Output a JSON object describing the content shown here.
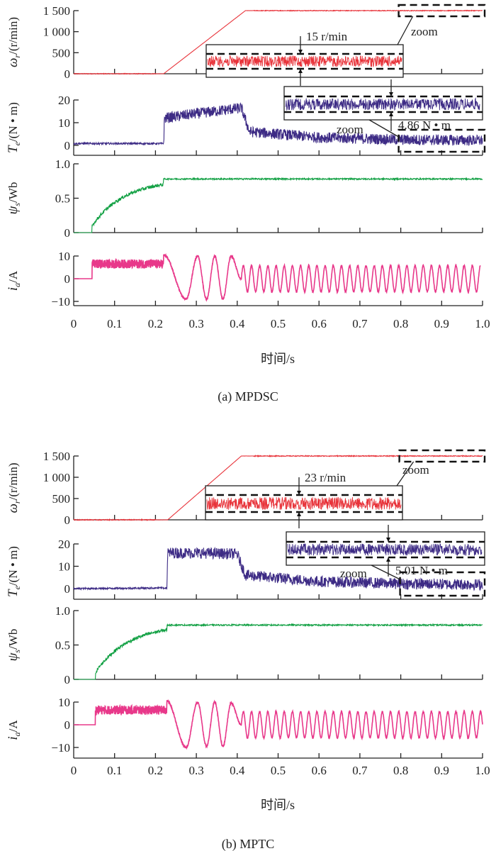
{
  "chart_data": [
    {
      "type": "line",
      "caption": "(a) MPDSC",
      "xlabel": "时间/s",
      "x_ticks": [
        "0",
        "0.1",
        "0.2",
        "0.3",
        "0.4",
        "0.5",
        "0.6",
        "0.7",
        "0.8",
        "0.9",
        "1.0"
      ],
      "xlim": [
        0,
        1.0
      ],
      "panels": [
        {
          "id": "speed",
          "ylabel_symbol": "ω",
          "ylabel_sub": "r",
          "ylabel_unit": "/(r/min)",
          "ylim": [
            0,
            1500
          ],
          "y_ticks": [
            "0",
            "500",
            "1 000",
            "1 500"
          ],
          "y_tick_values": [
            0,
            500,
            1000,
            1500
          ],
          "color": "#e8333a",
          "series": {
            "name": "speed",
            "x": [
              0,
              0.22,
              0.42,
              1.0
            ],
            "y": [
              0,
              0,
              1500,
              1500
            ],
            "noise": 8
          },
          "zoom_label": "zoom",
          "zoom_ripple_label": "15 r/min",
          "zoom_window": [
            0.8,
            1.0
          ]
        },
        {
          "id": "torque",
          "ylabel_symbol": "T",
          "ylabel_sub": "e",
          "ylabel_unit": "/(N • m)",
          "ylim": [
            -5,
            20
          ],
          "y_ticks": [
            "0",
            "10",
            "20"
          ],
          "y_tick_values": [
            0,
            10,
            20
          ],
          "color": "#3d2b85",
          "series": {
            "name": "torque",
            "x": [
              0,
              0.22,
              0.222,
              0.3,
              0.41,
              0.43,
              0.6,
              0.8,
              1.0
            ],
            "y": [
              0.8,
              0.8,
              12,
              14,
              16.5,
              6,
              3.5,
              2.5,
              2.2
            ],
            "noise": 2.4
          },
          "zoom_label": "zoom",
          "zoom_ripple_label": "4.86 N • m",
          "zoom_window": [
            0.8,
            1.0
          ]
        },
        {
          "id": "flux",
          "ylabel_symbol": "ψ",
          "ylabel_sub": "s",
          "ylabel_unit": "/Wb",
          "ylim": [
            0,
            1.0
          ],
          "y_ticks": [
            "0",
            "0.5",
            "1.0"
          ],
          "y_tick_values": [
            0,
            0.5,
            1.0
          ],
          "color": "#11a043",
          "series": {
            "name": "flux",
            "start": 0.045,
            "rise_end": 0.22,
            "rise_from": 0.1,
            "rise_to": 0.7,
            "steady": 0.78,
            "noise": 0.02
          }
        },
        {
          "id": "current",
          "ylabel_symbol": "i",
          "ylabel_sub": "a",
          "ylabel_unit": "/A",
          "ylim": [
            -15,
            12
          ],
          "y_ticks": [
            "-10",
            "0",
            "10"
          ],
          "y_tick_values": [
            -10,
            0,
            10
          ],
          "color": "#e8388a",
          "series": {
            "name": "current",
            "dc_start": 0.045,
            "dc_level": 6.5,
            "dc_band": 2,
            "osc_start": 0.22,
            "peaks": [
              -9,
              10,
              -9,
              10,
              -9,
              10
            ],
            "steady_amp": 5.8,
            "steady_freq": 50,
            "end": 0.995
          }
        }
      ]
    },
    {
      "type": "line",
      "caption": "(b) MPTC",
      "xlabel": "时间/s",
      "x_ticks": [
        "0",
        "0.1",
        "0.2",
        "0.3",
        "0.4",
        "0.5",
        "0.6",
        "0.7",
        "0.8",
        "0.9",
        "1.0"
      ],
      "xlim": [
        0,
        1.0
      ],
      "panels": [
        {
          "id": "speed",
          "ylabel_symbol": "ω",
          "ylabel_sub": "r",
          "ylabel_unit": "/(r/min)",
          "ylim": [
            0,
            1500
          ],
          "y_ticks": [
            "0",
            "500",
            "1 000",
            "1 500"
          ],
          "y_tick_values": [
            0,
            500,
            1000,
            1500
          ],
          "color": "#e8333a",
          "series": {
            "name": "speed",
            "x": [
              0,
              0.23,
              0.41,
              1.0
            ],
            "y": [
              0,
              0,
              1500,
              1500
            ],
            "noise": 10
          },
          "zoom_label": "zoom",
          "zoom_ripple_label": "23 r/min",
          "zoom_window": [
            0.8,
            1.0
          ]
        },
        {
          "id": "torque",
          "ylabel_symbol": "T",
          "ylabel_sub": "e",
          "ylabel_unit": "/(N • m)",
          "ylim": [
            -5,
            20
          ],
          "y_ticks": [
            "0",
            "10",
            "20"
          ],
          "y_tick_values": [
            0,
            10,
            20
          ],
          "color": "#3d2b85",
          "series": {
            "name": "torque",
            "x": [
              0,
              0.228,
              0.23,
              0.3,
              0.4,
              0.42,
              0.6,
              0.8,
              1.0
            ],
            "y": [
              0,
              0.3,
              16,
              16,
              15.5,
              6,
              3.2,
              2.2,
              1.8
            ],
            "noise": 2.5
          },
          "zoom_label": "zoom",
          "zoom_ripple_label": "5.01 N • m",
          "zoom_window": [
            0.8,
            1.0
          ]
        },
        {
          "id": "flux",
          "ylabel_symbol": "ψ",
          "ylabel_sub": "s",
          "ylabel_unit": "/Wb",
          "ylim": [
            0,
            1.0
          ],
          "y_ticks": [
            "0",
            "0.5",
            "1.0"
          ],
          "y_tick_values": [
            0,
            0.5,
            1.0
          ],
          "color": "#11a043",
          "series": {
            "name": "flux",
            "start": 0.053,
            "rise_end": 0.228,
            "rise_from": 0.1,
            "rise_to": 0.72,
            "steady": 0.79,
            "noise": 0.02
          }
        },
        {
          "id": "current",
          "ylabel_symbol": "i",
          "ylabel_sub": "a",
          "ylabel_unit": "/A",
          "ylim": [
            -15,
            12
          ],
          "y_ticks": [
            "-10",
            "0",
            "10"
          ],
          "y_tick_values": [
            -10,
            0,
            10
          ],
          "color": "#e8388a",
          "series": {
            "name": "current",
            "dc_start": 0.053,
            "dc_level": 6.5,
            "dc_band": 2,
            "osc_start": 0.228,
            "peaks": [
              -10,
              10,
              -9.5,
              10,
              -9.5,
              9.5
            ],
            "steady_amp": 5.8,
            "steady_freq": 50,
            "end": 1.0
          }
        }
      ]
    }
  ]
}
